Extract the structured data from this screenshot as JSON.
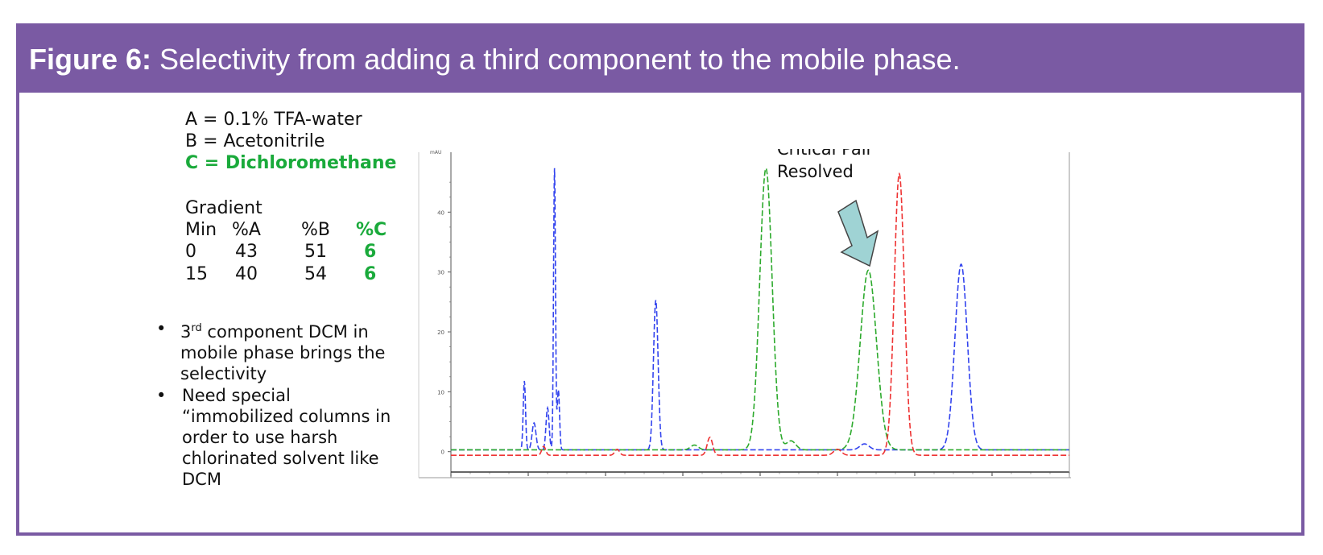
{
  "figure": {
    "label": "Figure 6:",
    "caption": " Selectivity from adding a third component to the mobile phase."
  },
  "conditions": {
    "a": "A = 0.1% TFA-water",
    "b": "B = Acetonitrile",
    "c": "C = Dichloromethane",
    "gradient_title": "Gradient",
    "headers": [
      "Min",
      "%A",
      "%B",
      "%C"
    ],
    "rows": [
      [
        "0",
        "43",
        "51",
        "6"
      ],
      [
        "15",
        "40",
        "54",
        "6"
      ]
    ]
  },
  "notes": {
    "bullet1_sup": "rd",
    "bullet1_pre": "3",
    "bullet1_rest": " component DCM in mobile phase brings the selectivity",
    "bullet2": "Need special “immobilized columns in order to use harsh chlorinated solvent like DCM"
  },
  "colors": {
    "banner": "#7a5aa3",
    "green_text": "#1aaa3b",
    "series_blue": "#3344ee",
    "series_green": "#2daa2d",
    "series_red": "#ee3333",
    "arrow_fill": "#9fd3d4"
  },
  "chart_data": {
    "type": "line",
    "title": "",
    "ylabel": "mAU",
    "xlabel": "",
    "xlim": [
      0,
      16
    ],
    "ylim": [
      -3,
      50
    ],
    "yticks": [
      0,
      10,
      20,
      30,
      40
    ],
    "xticks": [
      0,
      2,
      4,
      6,
      8,
      10,
      12,
      14
    ],
    "annotation": "Critical Pair\nResolved",
    "series": [
      {
        "color": "#3344ee",
        "baseline": 0.3,
        "peaks": [
          [
            1.9,
            11.5,
            0.03
          ],
          [
            2.15,
            4.5,
            0.05
          ],
          [
            2.5,
            7,
            0.04
          ],
          [
            2.68,
            47,
            0.025
          ],
          [
            2.78,
            10,
            0.03
          ],
          [
            5.3,
            25,
            0.06
          ],
          [
            10.7,
            1.0,
            0.12
          ],
          [
            13.2,
            31,
            0.16
          ]
        ]
      },
      {
        "color": "#2daa2d",
        "baseline": 0.3,
        "peaks": [
          [
            6.3,
            0.8,
            0.1
          ],
          [
            8.15,
            47,
            0.16
          ],
          [
            8.8,
            1.5,
            0.12
          ],
          [
            10.8,
            30,
            0.21
          ]
        ]
      },
      {
        "color": "#ee3333",
        "baseline": -0.6,
        "peaks": [
          [
            2.4,
            1.5,
            0.05
          ],
          [
            4.3,
            1.0,
            0.06
          ],
          [
            6.7,
            3.0,
            0.07
          ],
          [
            10.0,
            1.0,
            0.1
          ],
          [
            11.6,
            47,
            0.13
          ]
        ]
      }
    ]
  }
}
